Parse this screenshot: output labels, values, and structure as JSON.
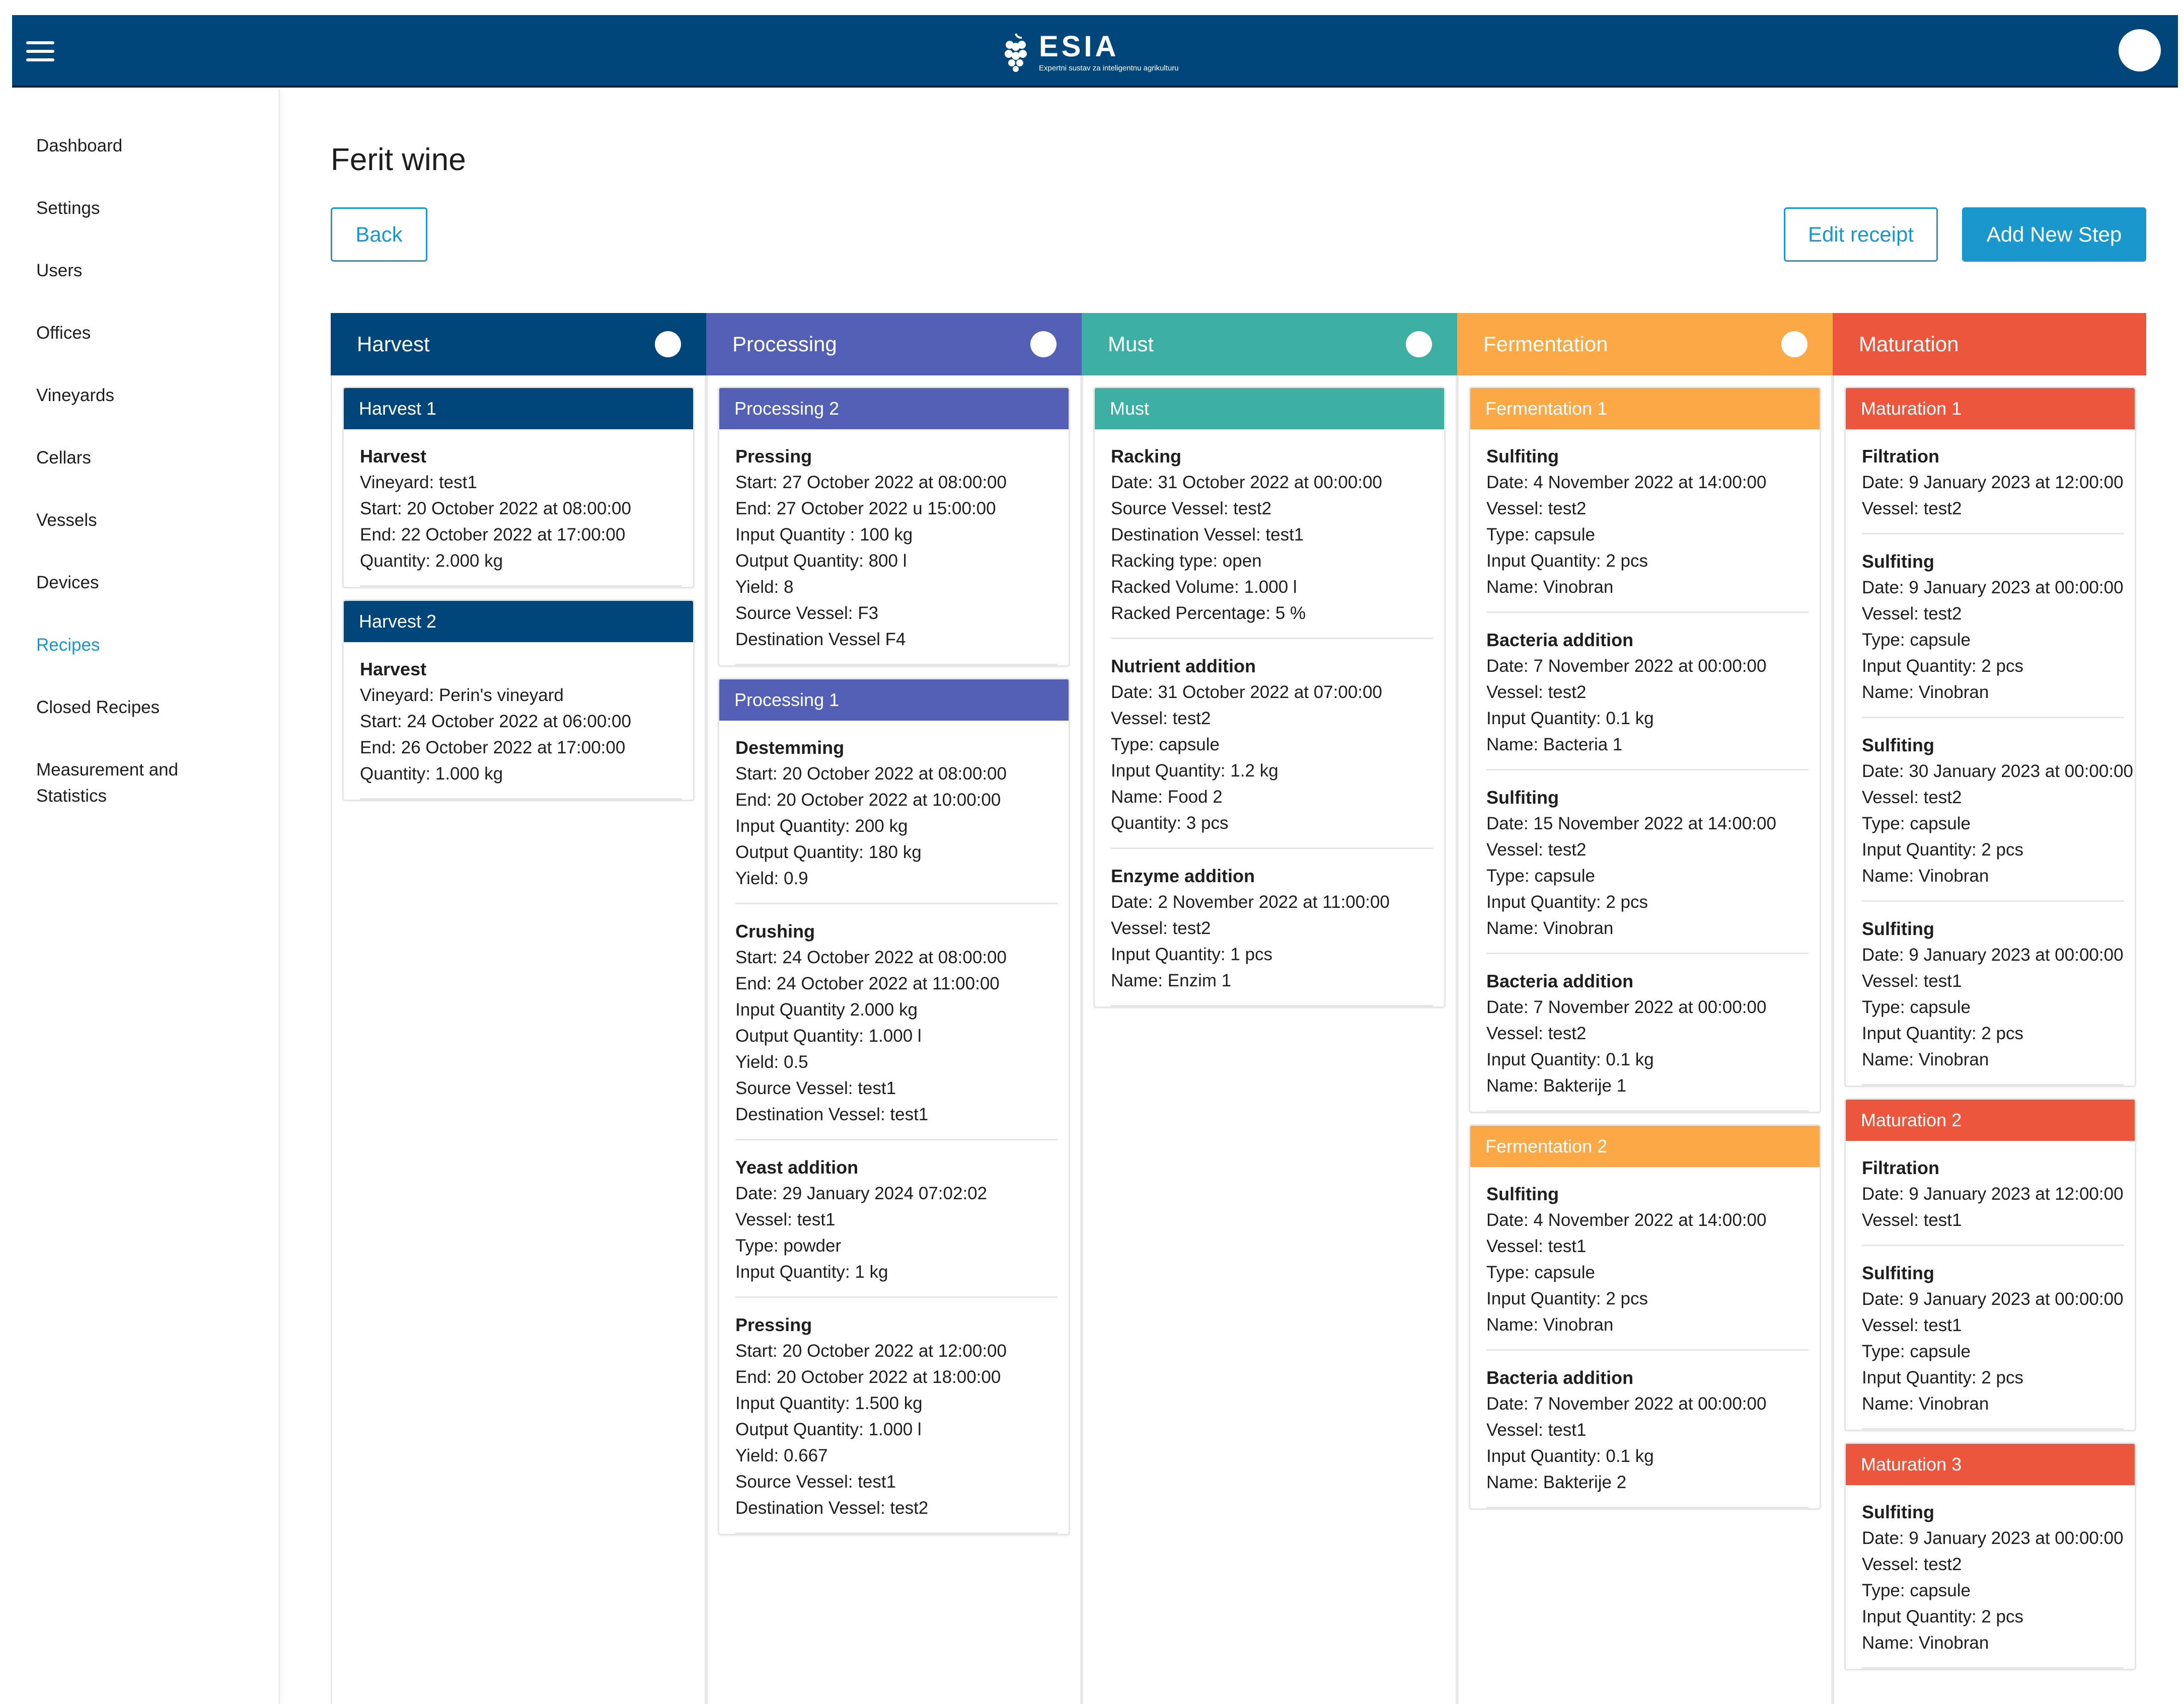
{
  "app": {
    "brand": "ESIA",
    "tagline": "Expertni sustav za inteligentnu agrikulturu"
  },
  "sidebar": {
    "items": [
      {
        "label": "Dashboard"
      },
      {
        "label": "Settings"
      },
      {
        "label": "Users"
      },
      {
        "label": "Offices"
      },
      {
        "label": "Vineyards"
      },
      {
        "label": "Cellars"
      },
      {
        "label": "Vessels"
      },
      {
        "label": "Devices"
      },
      {
        "label": "Recipes",
        "active": true
      },
      {
        "label": "Closed Recipes"
      },
      {
        "label": "Measurement and Statistics"
      }
    ]
  },
  "page": {
    "title": "Ferit wine",
    "back_label": "Back",
    "edit_label": "Edit receipt",
    "add_label": "Add New Step"
  },
  "colors": {
    "topbar": "#00467a",
    "accent": "#1a97cc",
    "harvest": "#00467a",
    "processing": "#5360b6",
    "must": "#3db0a3",
    "fermentation": "#fba847",
    "maturation": "#ec563d"
  },
  "icons": {
    "menu": "hamburger-menu-icon",
    "logo": "grape-logo-icon",
    "avatar": "user-avatar-icon"
  },
  "columns": [
    {
      "key": "harvest",
      "title": "Harvest",
      "color": "#00467a",
      "toggle": true,
      "groups": [
        {
          "title": "Harvest 1",
          "steps": [
            {
              "title": "Harvest",
              "lines": [
                "Vineyard: test1",
                "Start: 20 October 2022 at 08:00:00",
                "End: 22 October 2022 at 17:00:00",
                "Quantity: 2.000 kg"
              ]
            }
          ]
        },
        {
          "title": "Harvest 2",
          "steps": [
            {
              "title": "Harvest",
              "lines": [
                "Vineyard: Perin's vineyard",
                "Start: 24 October 2022 at 06:00:00",
                "End: 26 October 2022 at 17:00:00",
                "Quantity: 1.000 kg"
              ]
            }
          ]
        }
      ]
    },
    {
      "key": "processing",
      "title": "Processing",
      "color": "#5360b6",
      "toggle": true,
      "groups": [
        {
          "title": "Processing 2",
          "steps": [
            {
              "title": "Pressing",
              "lines": [
                "Start: 27 October 2022 at 08:00:00",
                "End: 27 October 2022 u 15:00:00",
                "Input Quantity : 100 kg",
                "Output Quantity: 800 l",
                "Yield: 8",
                "Source Vessel: F3",
                "Destination Vessel F4"
              ]
            }
          ]
        },
        {
          "title": "Processing 1",
          "steps": [
            {
              "title": "Destemming",
              "lines": [
                "Start: 20 October 2022 at 08:00:00",
                "End: 20 October 2022 at 10:00:00",
                "Input Quantity: 200 kg",
                "Output Quantity: 180 kg",
                "Yield: 0.9"
              ]
            },
            {
              "title": "Crushing",
              "lines": [
                "Start: 24 October 2022 at 08:00:00",
                "End: 24 October 2022 at 11:00:00",
                "Input Quantity 2.000 kg",
                "Output Quantity: 1.000 l",
                "Yield: 0.5",
                "Source Vessel: test1",
                "Destination Vessel: test1"
              ]
            },
            {
              "title": "Yeast addition",
              "lines": [
                "Date: 29 January 2024 07:02:02",
                "Vessel: test1",
                "Type: powder",
                "Input Quantity: 1 kg"
              ]
            },
            {
              "title": "Pressing",
              "lines": [
                "Start: 20 October 2022 at 12:00:00",
                "End: 20 October 2022 at 18:00:00",
                "Input Quantity: 1.500 kg",
                "Output Quantity: 1.000 l",
                "Yield: 0.667",
                "Source Vessel: test1",
                "Destination Vessel: test2"
              ]
            }
          ]
        }
      ]
    },
    {
      "key": "must",
      "title": "Must",
      "color": "#3db0a3",
      "toggle": true,
      "groups": [
        {
          "title": "Must",
          "steps": [
            {
              "title": "Racking",
              "lines": [
                "Date: 31 October 2022 at 00:00:00",
                "Source Vessel: test2",
                "Destination Vessel: test1",
                "Racking type: open",
                "Racked Volume: 1.000 l",
                "Racked Percentage: 5 %"
              ]
            },
            {
              "title": "Nutrient addition",
              "lines": [
                "Date: 31 October 2022 at 07:00:00",
                "Vessel: test2",
                "Type: capsule",
                "Input Quantity: 1.2 kg",
                "Name: Food 2",
                "Quantity: 3 pcs"
              ]
            },
            {
              "title": "Enzyme addition",
              "lines": [
                "Date: 2 November 2022 at 11:00:00",
                "Vessel: test2",
                "Input Quantity: 1 pcs",
                "Name: Enzim 1"
              ]
            }
          ]
        }
      ]
    },
    {
      "key": "fermentation",
      "title": "Fermentation",
      "color": "#fba847",
      "toggle": true,
      "groups": [
        {
          "title": "Fermentation 1",
          "steps": [
            {
              "title": "Sulfiting",
              "lines": [
                "Date: 4 November 2022 at 14:00:00",
                "Vessel: test2",
                "Type: capsule",
                "Input Quantity: 2 pcs",
                "Name: Vinobran"
              ]
            },
            {
              "title": "Bacteria addition",
              "lines": [
                "Date: 7 November 2022 at 00:00:00",
                "Vessel: test2",
                "Input Quantity: 0.1 kg",
                "Name: Bacteria 1"
              ]
            },
            {
              "title": "Sulfiting",
              "lines": [
                "Date: 15 November 2022 at 14:00:00",
                "Vessel: test2",
                "Type: capsule",
                "Input Quantity: 2 pcs",
                "Name: Vinobran"
              ]
            },
            {
              "title": "Bacteria addition",
              "lines": [
                "Date: 7 November 2022 at 00:00:00",
                "Vessel: test2",
                "Input Quantity: 0.1 kg",
                "Name: Bakterije 1"
              ]
            }
          ]
        },
        {
          "title": "Fermentation 2",
          "steps": [
            {
              "title": "Sulfiting",
              "lines": [
                "Date: 4 November 2022 at 14:00:00",
                "Vessel: test1",
                "Type: capsule",
                "Input Quantity: 2 pcs",
                "Name: Vinobran"
              ]
            },
            {
              "title": "Bacteria addition",
              "lines": [
                "Date: 7 November 2022 at 00:00:00",
                "Vessel: test1",
                "Input Quantity: 0.1 kg",
                "Name: Bakterije 2"
              ]
            }
          ]
        }
      ]
    },
    {
      "key": "maturation",
      "title": "Maturation",
      "color": "#ec563d",
      "toggle": false,
      "groups": [
        {
          "title": "Maturation 1",
          "steps": [
            {
              "title": "Filtration",
              "lines": [
                "Date: 9 January 2023 at 12:00:00",
                "Vessel: test2"
              ]
            },
            {
              "title": "Sulfiting",
              "lines": [
                "Date: 9 January 2023 at 00:00:00",
                "Vessel: test2",
                "Type: capsule",
                "Input Quantity: 2 pcs",
                "Name: Vinobran"
              ]
            },
            {
              "title": "Sulfiting",
              "lines": [
                "Date: 30 January 2023 at 00:00:00",
                "Vessel: test2",
                "Type: capsule",
                "Input Quantity: 2 pcs",
                "Name: Vinobran"
              ]
            },
            {
              "title": "Sulfiting",
              "lines": [
                "Date: 9 January 2023 at 00:00:00",
                "Vessel: test1",
                "Type: capsule",
                "Input Quantity: 2 pcs",
                "Name: Vinobran"
              ]
            }
          ]
        },
        {
          "title": "Maturation 2",
          "steps": [
            {
              "title": "Filtration",
              "lines": [
                "Date: 9 January 2023 at 12:00:00",
                "Vessel: test1"
              ]
            },
            {
              "title": "Sulfiting",
              "lines": [
                "Date: 9 January 2023 at 00:00:00",
                "Vessel: test1",
                "Type: capsule",
                "Input Quantity: 2 pcs",
                "Name: Vinobran"
              ]
            }
          ]
        },
        {
          "title": "Maturation 3",
          "steps": [
            {
              "title": "Sulfiting",
              "lines": [
                "Date: 9 January 2023 at 00:00:00",
                "Vessel: test2",
                "Type: capsule",
                "Input Quantity: 2 pcs",
                "Name: Vinobran"
              ]
            }
          ]
        }
      ]
    }
  ]
}
